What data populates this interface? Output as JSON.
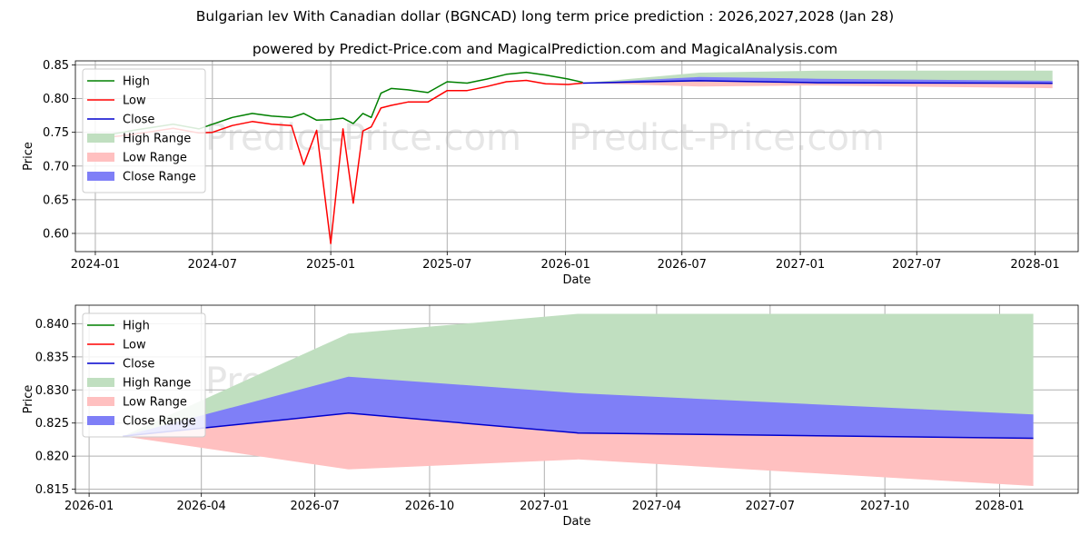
{
  "title": "Bulgarian lev With Canadian dollar (BGNCAD) long term price prediction : 2026,2027,2028 (Jan 28)",
  "subtitle": "powered by Predict-Price.com and MagicalPrediction.com and MagicalAnalysis.com",
  "watermark": "Predict-Price.com",
  "colors": {
    "high": "#008000",
    "low": "#ff0000",
    "close": "#0000cd",
    "high_range": "#c0dfc0",
    "low_range": "#ffc0c0",
    "close_range": "#7f7ff7"
  },
  "legend": [
    "High",
    "Low",
    "Close",
    "High Range",
    "Low Range",
    "Close Range"
  ],
  "chart_data": [
    {
      "type": "line",
      "xlabel": "Date",
      "ylabel": "Price",
      "xlim": [
        "2023-12-01",
        "2028-03-08"
      ],
      "ylim": [
        0.573,
        0.856
      ],
      "xticks": [
        {
          "date": "2024-01-01",
          "label": "2024-01"
        },
        {
          "date": "2024-07-01",
          "label": "2024-07"
        },
        {
          "date": "2025-01-01",
          "label": "2025-01"
        },
        {
          "date": "2025-07-01",
          "label": "2025-07"
        },
        {
          "date": "2026-01-01",
          "label": "2026-01"
        },
        {
          "date": "2026-07-01",
          "label": "2026-07"
        },
        {
          "date": "2027-01-01",
          "label": "2027-01"
        },
        {
          "date": "2027-07-01",
          "label": "2027-07"
        },
        {
          "date": "2028-01-01",
          "label": "2028-01"
        }
      ],
      "yticks": [
        {
          "v": 0.6,
          "label": "0.60"
        },
        {
          "v": 0.65,
          "label": "0.65"
        },
        {
          "v": 0.7,
          "label": "0.70"
        },
        {
          "v": 0.75,
          "label": "0.75"
        },
        {
          "v": 0.8,
          "label": "0.80"
        },
        {
          "v": 0.85,
          "label": "0.85"
        }
      ],
      "history": {
        "dates": [
          "2024-01-15",
          "2024-03-01",
          "2024-05-01",
          "2024-06-10",
          "2024-07-01",
          "2024-08-01",
          "2024-09-01",
          "2024-10-01",
          "2024-11-01",
          "2024-11-20",
          "2024-12-10",
          "2025-01-01",
          "2025-01-20",
          "2025-02-05",
          "2025-02-20",
          "2025-03-05",
          "2025-03-20",
          "2025-04-05",
          "2025-05-01",
          "2025-06-01",
          "2025-07-01",
          "2025-08-01",
          "2025-09-01",
          "2025-10-01",
          "2025-11-01",
          "2025-12-01",
          "2026-01-05",
          "2026-01-28"
        ],
        "high": [
          0.745,
          0.753,
          0.762,
          0.755,
          0.762,
          0.772,
          0.778,
          0.774,
          0.772,
          0.778,
          0.768,
          0.769,
          0.771,
          0.763,
          0.778,
          0.772,
          0.808,
          0.815,
          0.813,
          0.809,
          0.825,
          0.823,
          0.829,
          0.836,
          0.839,
          0.835,
          0.829,
          0.824
        ],
        "low": [
          0.742,
          0.747,
          0.756,
          0.749,
          0.75,
          0.76,
          0.766,
          0.762,
          0.76,
          0.702,
          0.753,
          0.585,
          0.755,
          0.645,
          0.752,
          0.758,
          0.786,
          0.79,
          0.795,
          0.795,
          0.812,
          0.812,
          0.818,
          0.825,
          0.827,
          0.822,
          0.821,
          0.823
        ]
      },
      "forecast": {
        "dates": [
          "2026-01-28",
          "2026-07-28",
          "2027-01-28",
          "2028-01-28"
        ],
        "close": [
          0.823,
          0.8265,
          0.8235,
          0.8227
        ],
        "high_range_top": [
          0.823,
          0.8385,
          0.8415,
          0.8415
        ],
        "low_range_bottom": [
          0.823,
          0.818,
          0.8195,
          0.8155
        ],
        "close_range_top": [
          0.823,
          0.832,
          0.8295,
          0.8263
        ],
        "close_range_bottom": [
          0.823,
          0.8265,
          0.8235,
          0.8227
        ]
      }
    },
    {
      "type": "line",
      "xlabel": "Date",
      "ylabel": "Price",
      "xlim": [
        "2025-12-21",
        "2028-03-04"
      ],
      "ylim": [
        0.8144,
        0.8428
      ],
      "xticks": [
        {
          "date": "2026-01-01",
          "label": "2026-01"
        },
        {
          "date": "2026-04-01",
          "label": "2026-04"
        },
        {
          "date": "2026-07-01",
          "label": "2026-07"
        },
        {
          "date": "2026-10-01",
          "label": "2026-10"
        },
        {
          "date": "2027-01-01",
          "label": "2027-01"
        },
        {
          "date": "2027-04-01",
          "label": "2027-04"
        },
        {
          "date": "2027-07-01",
          "label": "2027-07"
        },
        {
          "date": "2027-10-01",
          "label": "2027-10"
        },
        {
          "date": "2028-01-01",
          "label": "2028-01"
        }
      ],
      "yticks": [
        {
          "v": 0.815,
          "label": "0.815"
        },
        {
          "v": 0.82,
          "label": "0.820"
        },
        {
          "v": 0.825,
          "label": "0.825"
        },
        {
          "v": 0.83,
          "label": "0.830"
        },
        {
          "v": 0.835,
          "label": "0.835"
        },
        {
          "v": 0.84,
          "label": "0.840"
        }
      ],
      "forecast": {
        "dates": [
          "2026-01-28",
          "2026-07-28",
          "2027-01-28",
          "2028-01-28"
        ],
        "close": [
          0.823,
          0.8265,
          0.8235,
          0.8227
        ],
        "high_range_top": [
          0.823,
          0.8385,
          0.8415,
          0.8415
        ],
        "low_range_bottom": [
          0.823,
          0.818,
          0.8195,
          0.8155
        ],
        "close_range_top": [
          0.823,
          0.832,
          0.8295,
          0.8263
        ],
        "close_range_bottom": [
          0.823,
          0.8265,
          0.8235,
          0.8227
        ]
      }
    }
  ]
}
